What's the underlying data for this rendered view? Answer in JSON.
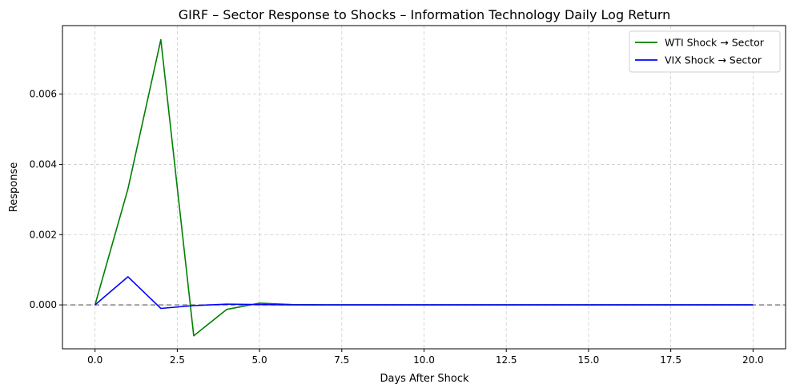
{
  "chart_data": {
    "type": "line",
    "title": "GIRF – Sector Response to Shocks – Information Technology Daily Log Return",
    "xlabel": "Days After Shock",
    "ylabel": "Response",
    "xlim": [
      -0.99,
      20.99
    ],
    "ylim": [
      -0.00125,
      0.00795
    ],
    "xticks": [
      0.0,
      2.5,
      5.0,
      7.5,
      10.0,
      12.5,
      15.0,
      17.5,
      20.0
    ],
    "xtick_labels": [
      "0.0",
      "2.5",
      "5.0",
      "7.5",
      "10.0",
      "12.5",
      "15.0",
      "17.5",
      "20.0"
    ],
    "yticks": [
      0.0,
      0.002,
      0.004,
      0.006
    ],
    "ytick_labels": [
      "0.000",
      "0.002",
      "0.004",
      "0.006"
    ],
    "grid": true,
    "legend_position": "top-right",
    "zero_line": {
      "y": 0,
      "style": "dashed",
      "color": "#808080"
    },
    "x": [
      0,
      1,
      2,
      3,
      4,
      5,
      6,
      7,
      8,
      9,
      10,
      11,
      12,
      13,
      14,
      15,
      16,
      17,
      18,
      19,
      20
    ],
    "series": [
      {
        "name": "WTI Shock → Sector",
        "color": "#008000",
        "values": [
          0.0,
          0.0033,
          0.00755,
          -0.00088,
          -0.00013,
          5e-05,
          1e-05,
          0.0,
          0.0,
          0.0,
          0.0,
          0.0,
          0.0,
          0.0,
          0.0,
          0.0,
          0.0,
          0.0,
          0.0,
          0.0,
          0.0
        ]
      },
      {
        "name": "VIX Shock → Sector",
        "color": "#0000ff",
        "values": [
          0.0,
          0.0008,
          -0.0001,
          -2e-05,
          2e-05,
          1e-05,
          0.0,
          0.0,
          0.0,
          0.0,
          0.0,
          0.0,
          0.0,
          0.0,
          0.0,
          0.0,
          0.0,
          0.0,
          0.0,
          0.0,
          0.0
        ]
      }
    ]
  }
}
